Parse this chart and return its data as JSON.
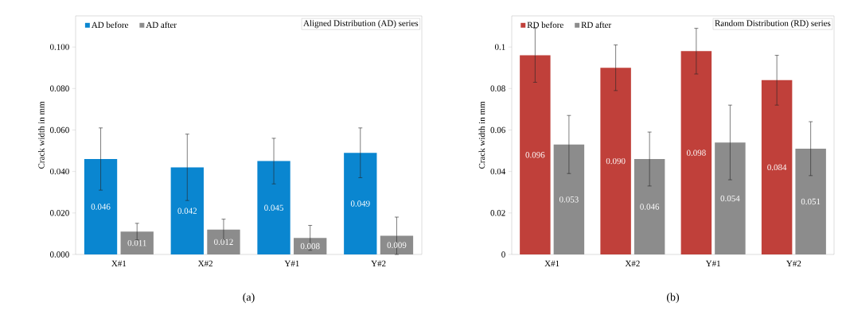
{
  "chart_data": [
    {
      "type": "bar",
      "categories": [
        "X#1",
        "X#2",
        "Y#1",
        "Y#2"
      ],
      "ylabel": "Crack width in mm",
      "series": [
        {
          "name": "AD before",
          "color": "#0a86d0",
          "values": [
            0.046,
            0.042,
            0.045,
            0.049
          ],
          "errors": [
            0.015,
            0.016,
            0.011,
            0.012
          ],
          "value_labels": [
            "0.046",
            "0.042",
            "0.045",
            "0.049"
          ]
        },
        {
          "name": "AD after",
          "color": "#8c8c8c",
          "values": [
            0.011,
            0.012,
            0.008,
            0.009
          ],
          "errors": [
            0.004,
            0.005,
            0.006,
            0.009
          ],
          "value_labels": [
            "0.011",
            "0.012",
            "0.008",
            "0.009"
          ]
        }
      ],
      "ylim": [
        0,
        0.115
      ],
      "yticks": [
        {
          "value": 0,
          "label": "0.000"
        },
        {
          "value": 0.02,
          "label": "0.020"
        },
        {
          "value": 0.04,
          "label": "0.040"
        },
        {
          "value": 0.06,
          "label": "0.060"
        },
        {
          "value": 0.08,
          "label": "0.080"
        },
        {
          "value": 0.1,
          "label": "0.100"
        }
      ],
      "legend": "top left",
      "annotations": [
        "Aligned Distribution (AD) series",
        "(a)"
      ]
    },
    {
      "type": "bar",
      "categories": [
        "X#1",
        "X#2",
        "Y#1",
        "Y#2"
      ],
      "ylabel": "Crack width in mm",
      "series": [
        {
          "name": "RD before",
          "color": "#c0403a",
          "values": [
            0.096,
            0.09,
            0.098,
            0.084
          ],
          "errors": [
            0.013,
            0.011,
            0.011,
            0.012
          ],
          "value_labels": [
            "0.096",
            "0.090",
            "0.098",
            "0.084"
          ]
        },
        {
          "name": "RD after",
          "color": "#8c8c8c",
          "values": [
            0.053,
            0.046,
            0.054,
            0.051
          ],
          "errors": [
            0.014,
            0.013,
            0.018,
            0.013
          ],
          "value_labels": [
            "0.053",
            "0.046",
            "0.054",
            "0.051"
          ]
        }
      ],
      "ylim": [
        0,
        0.115
      ],
      "yticks": [
        0,
        0.02,
        0.04,
        0.06,
        0.08,
        0.1
      ],
      "legend": "top left",
      "annotations": [
        "Random Distribution (RD) series",
        "(b)"
      ]
    }
  ]
}
